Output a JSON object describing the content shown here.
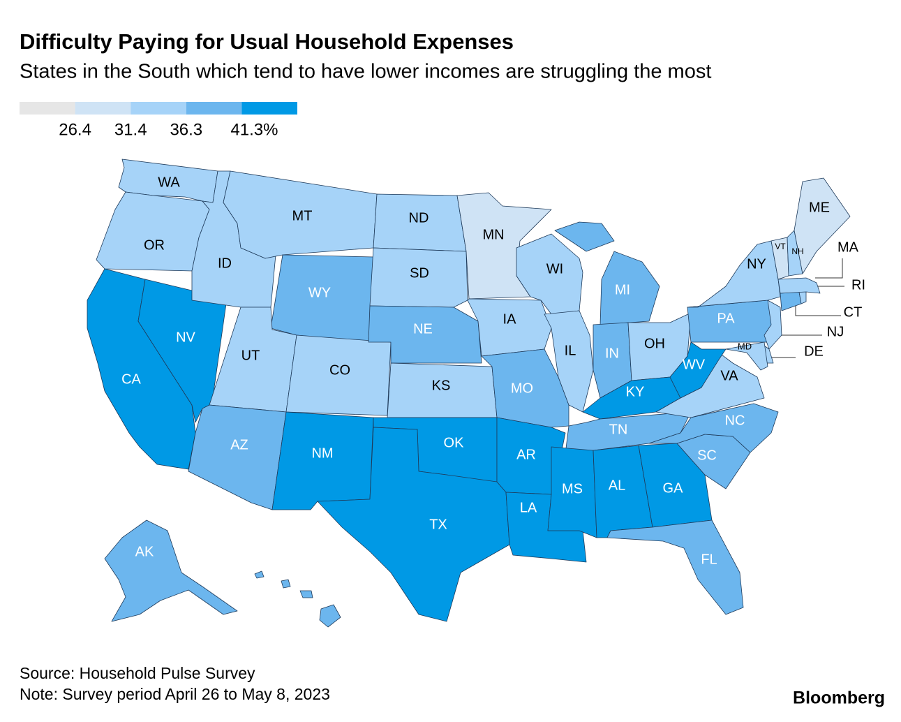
{
  "chart_data": {
    "type": "choropleth",
    "title": "Difficulty Paying for Usual Household Expenses",
    "subtitle": "States in the South which tend to have lower incomes are struggling the most",
    "legend": {
      "ticks": [
        26.4,
        31.4,
        36.3,
        {
          "value": 41.3,
          "label": "41.3%"
        }
      ],
      "colors": [
        "#e6e6e6",
        "#cfe3f5",
        "#a6d3f8",
        "#6cb6ee",
        "#0099e5"
      ]
    },
    "states": [
      {
        "name": "WA",
        "value": 34
      },
      {
        "name": "OR",
        "value": 34
      },
      {
        "name": "CA",
        "value": 44
      },
      {
        "name": "NV",
        "value": 44
      },
      {
        "name": "ID",
        "value": 34
      },
      {
        "name": "MT",
        "value": 34
      },
      {
        "name": "WY",
        "value": 39
      },
      {
        "name": "UT",
        "value": 34
      },
      {
        "name": "CO",
        "value": 34
      },
      {
        "name": "AZ",
        "value": 39
      },
      {
        "name": "NM",
        "value": 44
      },
      {
        "name": "ND",
        "value": 34
      },
      {
        "name": "SD",
        "value": 34
      },
      {
        "name": "NE",
        "value": 39
      },
      {
        "name": "KS",
        "value": 34
      },
      {
        "name": "OK",
        "value": 44
      },
      {
        "name": "TX",
        "value": 44
      },
      {
        "name": "MN",
        "value": 29
      },
      {
        "name": "IA",
        "value": 34
      },
      {
        "name": "MO",
        "value": 39
      },
      {
        "name": "AR",
        "value": 44
      },
      {
        "name": "LA",
        "value": 44
      },
      {
        "name": "WI",
        "value": 34
      },
      {
        "name": "IL",
        "value": 34
      },
      {
        "name": "MI",
        "value": 39
      },
      {
        "name": "IN",
        "value": 39
      },
      {
        "name": "OH",
        "value": 34
      },
      {
        "name": "KY",
        "value": 44
      },
      {
        "name": "TN",
        "value": 39
      },
      {
        "name": "MS",
        "value": 44
      },
      {
        "name": "AL",
        "value": 44
      },
      {
        "name": "GA",
        "value": 44
      },
      {
        "name": "FL",
        "value": 39
      },
      {
        "name": "SC",
        "value": 39
      },
      {
        "name": "NC",
        "value": 39
      },
      {
        "name": "VA",
        "value": 34
      },
      {
        "name": "WV",
        "value": 44
      },
      {
        "name": "PA",
        "value": 39
      },
      {
        "name": "NY",
        "value": 34
      },
      {
        "name": "NJ",
        "value": 34
      },
      {
        "name": "DE",
        "value": 34
      },
      {
        "name": "MD",
        "value": 34
      },
      {
        "name": "CT",
        "value": 39
      },
      {
        "name": "RI",
        "value": 34
      },
      {
        "name": "MA",
        "value": 34
      },
      {
        "name": "VT",
        "value": 29
      },
      {
        "name": "NH",
        "value": 34
      },
      {
        "name": "ME",
        "value": 29
      },
      {
        "name": "AK",
        "value": 39
      }
    ],
    "source": "Source: Household Pulse Survey",
    "note": "Note: Survey period April 26 to May 8, 2023",
    "brand": "Bloomberg"
  }
}
